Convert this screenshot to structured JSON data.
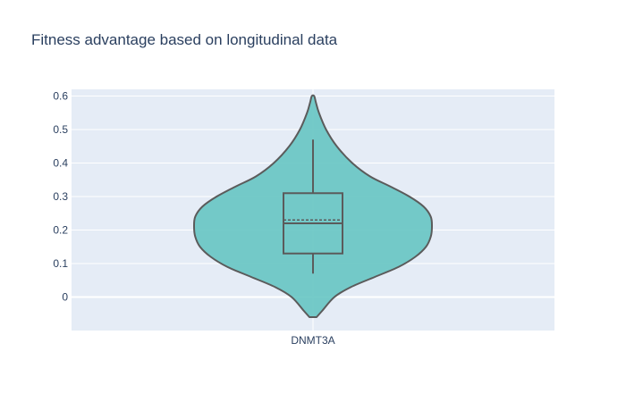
{
  "chart_data": {
    "type": "violin",
    "title": "Fitness advantage based on longitudinal data",
    "xlabel": "",
    "ylabel": "",
    "categories": [
      "DNMT3A"
    ],
    "ylim": [
      -0.1,
      0.62
    ],
    "yticks": [
      0,
      0.1,
      0.2,
      0.3,
      0.4,
      0.5,
      0.6
    ],
    "ytick_labels": [
      "0",
      "0.1",
      "0.2",
      "0.3",
      "0.4",
      "0.5",
      "0.6"
    ],
    "grid": true,
    "legend": false,
    "series": [
      {
        "category": "DNMT3A",
        "violin_min": -0.06,
        "violin_max": 0.6,
        "box": {
          "q1": 0.13,
          "median": 0.22,
          "mean": 0.23,
          "q3": 0.31,
          "whisker_low": 0.07,
          "whisker_high": 0.47
        },
        "density_profile": [
          [
            -0.06,
            0.03
          ],
          [
            -0.04,
            0.08
          ],
          [
            0.0,
            0.18
          ],
          [
            0.03,
            0.32
          ],
          [
            0.06,
            0.52
          ],
          [
            0.09,
            0.72
          ],
          [
            0.12,
            0.86
          ],
          [
            0.15,
            0.95
          ],
          [
            0.18,
            0.99
          ],
          [
            0.21,
            1.0
          ],
          [
            0.24,
            0.99
          ],
          [
            0.27,
            0.93
          ],
          [
            0.3,
            0.81
          ],
          [
            0.33,
            0.65
          ],
          [
            0.36,
            0.48
          ],
          [
            0.4,
            0.33
          ],
          [
            0.45,
            0.2
          ],
          [
            0.5,
            0.11
          ],
          [
            0.55,
            0.05
          ],
          [
            0.58,
            0.025
          ],
          [
            0.6,
            0.01
          ]
        ]
      }
    ],
    "colors": {
      "fill": "#66c5c3",
      "line": "#5b5b5b",
      "plot_bg": "#e5ecf6",
      "grid": "#ffffff",
      "text": "#2a3f5f"
    }
  }
}
